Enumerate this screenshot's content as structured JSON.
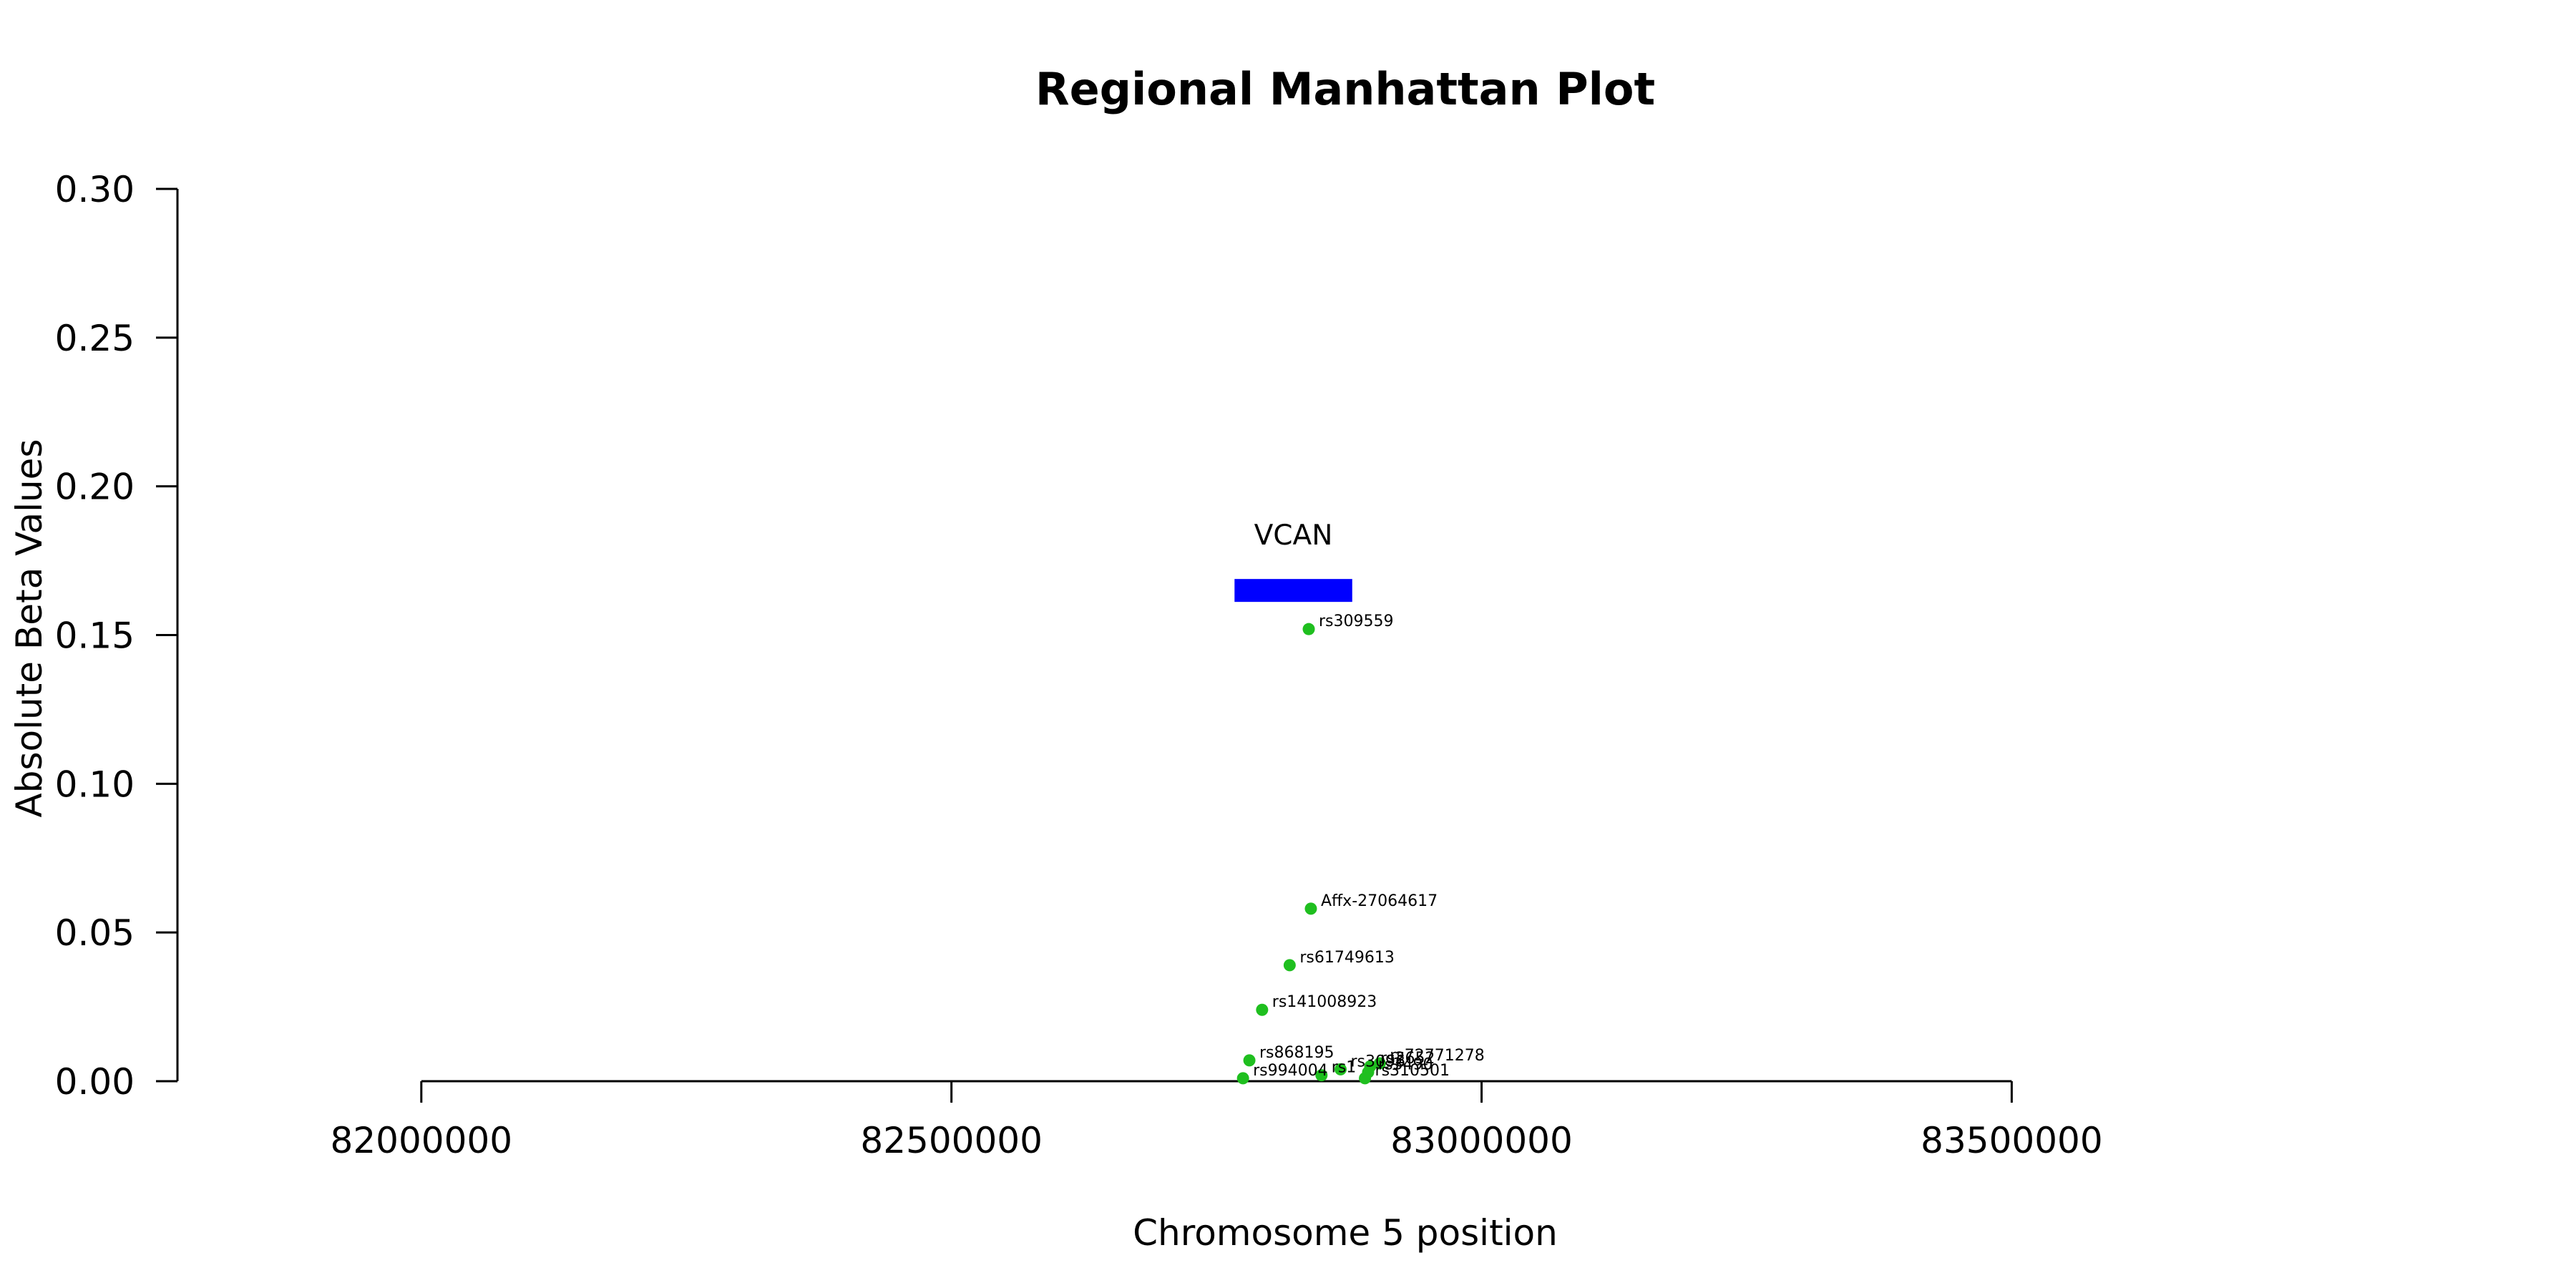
{
  "chart_data": {
    "type": "scatter",
    "title": "Regional Manhattan Plot",
    "xlabel": "Chromosome 5 position",
    "ylabel": "Absolute Beta Values",
    "xlim": [
      81770000,
      83850000
    ],
    "ylim": [
      0,
      0.3
    ],
    "x_ticks": [
      82000000,
      82500000,
      83000000,
      83500000
    ],
    "x_tick_labels": [
      "82000000",
      "82500000",
      "83000000",
      "83500000"
    ],
    "y_ticks": [
      0,
      0.05,
      0.1,
      0.15,
      0.2,
      0.25,
      0.3
    ],
    "y_tick_labels": [
      "0.00",
      "0.05",
      "0.10",
      "0.15",
      "0.20",
      "0.25",
      "0.30"
    ],
    "grid": false,
    "point_color": "#1fbf1f",
    "gene": {
      "name": "VCAN",
      "start": 82767000,
      "end": 82878000,
      "y": 0.165,
      "color": "#0000ff"
    },
    "points": [
      {
        "label": "rs309559",
        "x": 82837000,
        "y": 0.152
      },
      {
        "label": "Affx-27064617",
        "x": 82839000,
        "y": 0.058
      },
      {
        "label": "rs61749613",
        "x": 82819000,
        "y": 0.039
      },
      {
        "label": "rs141008923",
        "x": 82793000,
        "y": 0.024
      },
      {
        "label": "rs868195",
        "x": 82781000,
        "y": 0.007
      },
      {
        "label": "rs994004",
        "x": 82775000,
        "y": 0.001
      },
      {
        "label": "rs1",
        "x": 82849000,
        "y": 0.002
      },
      {
        "label": "rs3096",
        "x": 82867000,
        "y": 0.004
      },
      {
        "label": "rs2652",
        "x": 82895000,
        "y": 0.005
      },
      {
        "label": "rs72771278",
        "x": 82904000,
        "y": 0.006
      },
      {
        "label": "rs3490",
        "x": 82893000,
        "y": 0.003
      },
      {
        "label": "rs310501",
        "x": 82890000,
        "y": 0.001
      }
    ]
  }
}
